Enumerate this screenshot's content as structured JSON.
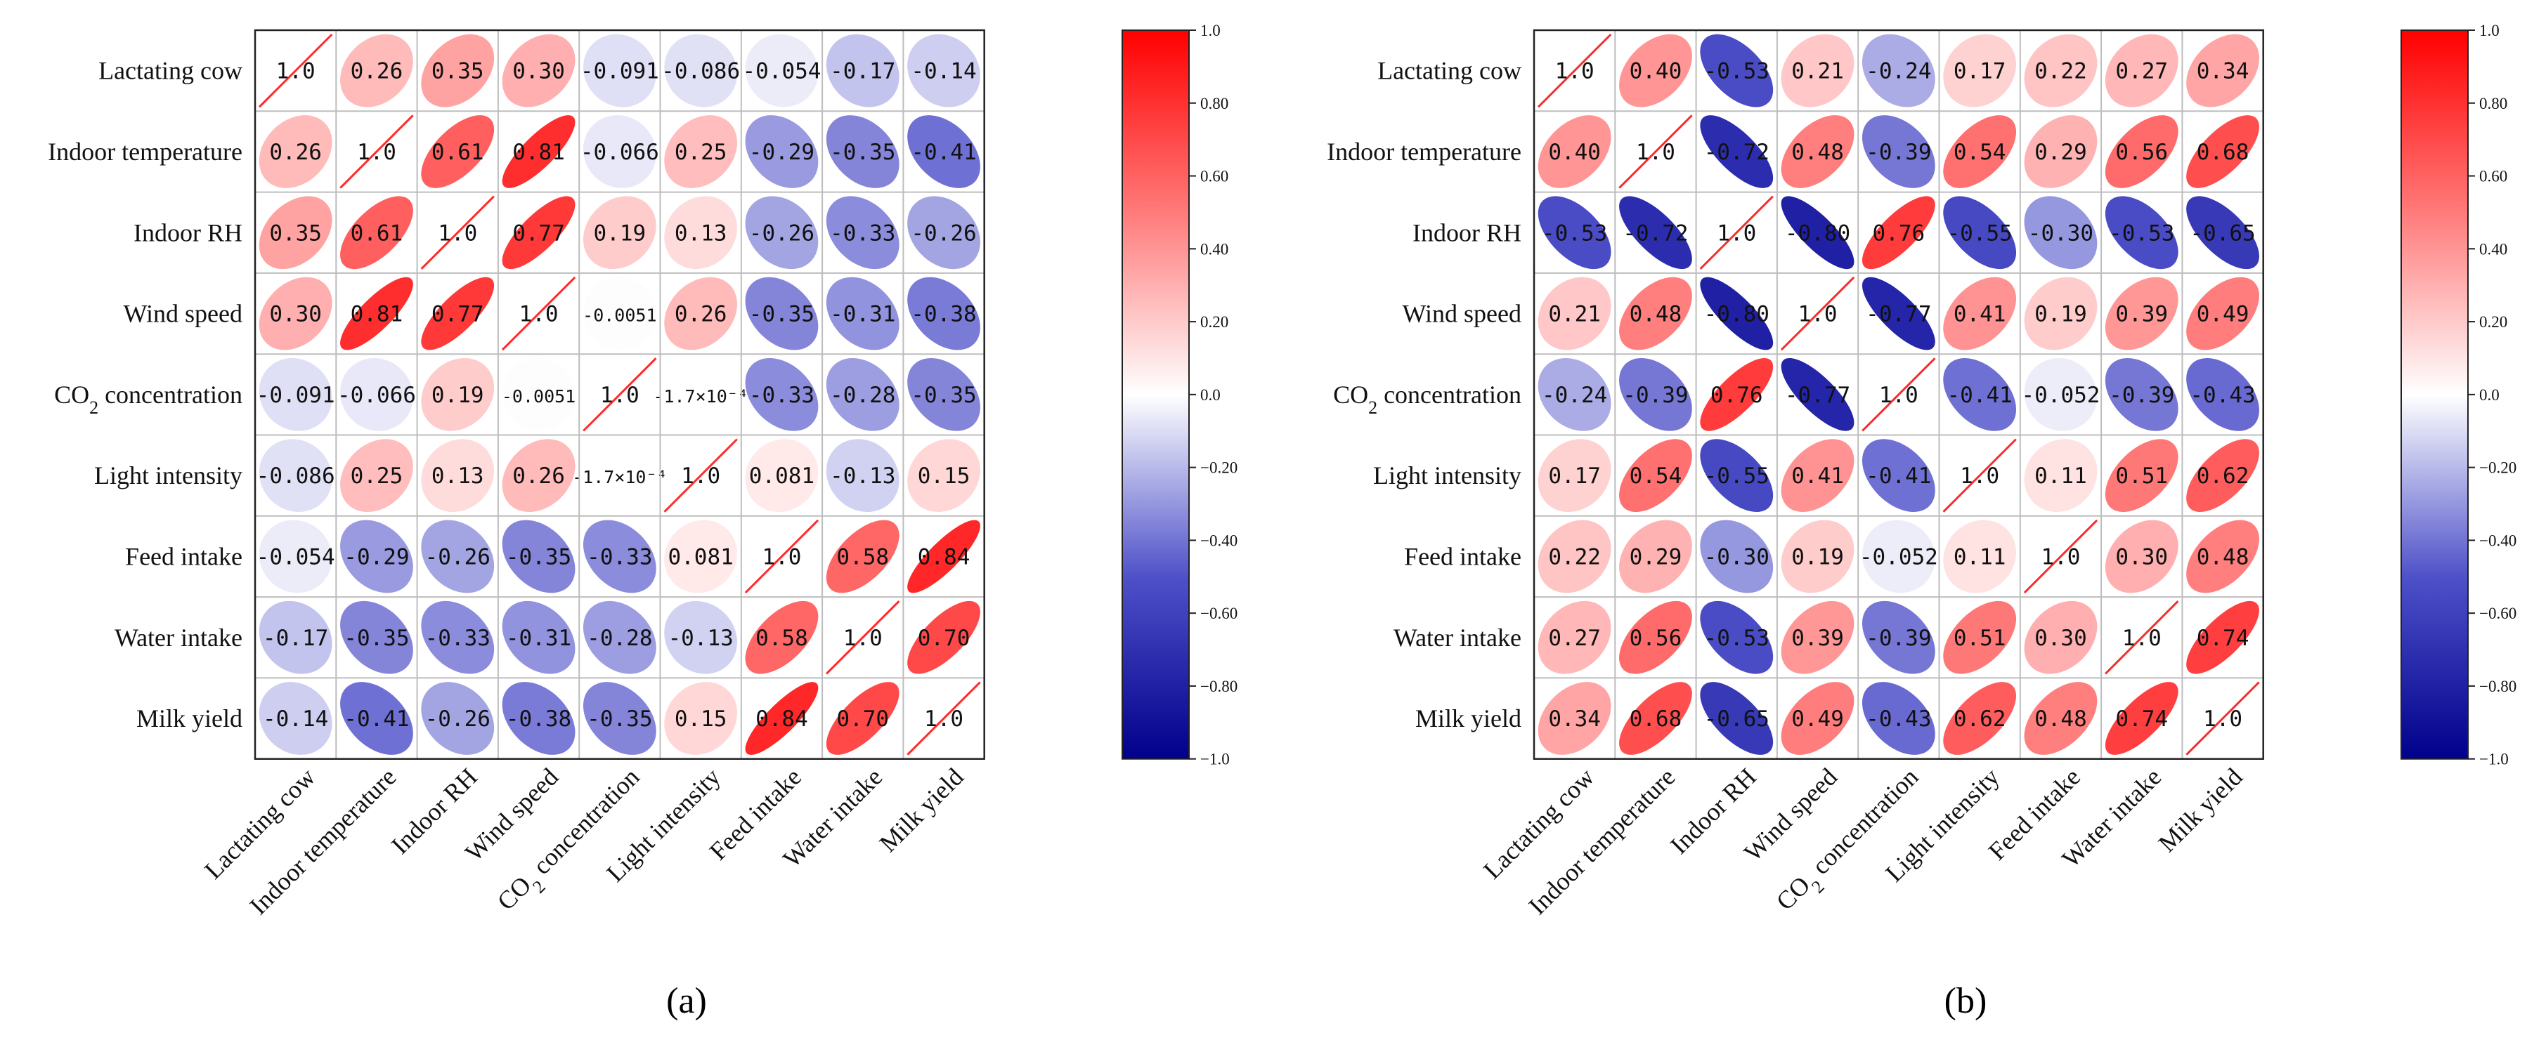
{
  "labels": [
    "Lactating cow",
    "Indoor temperature",
    "Indoor RH",
    "Wind speed",
    "CO₂ concentration",
    "Light intensity",
    "Feed intake",
    "Water intake",
    "Milk yield"
  ],
  "chart_data": [
    {
      "type": "heatmap",
      "caption": "(a)",
      "matrix": [
        [
          1.0,
          0.26,
          0.35,
          0.3,
          -0.091,
          -0.086,
          -0.054,
          -0.17,
          -0.14
        ],
        [
          0.26,
          1.0,
          0.61,
          0.81,
          -0.066,
          0.25,
          -0.29,
          -0.35,
          -0.41
        ],
        [
          0.35,
          0.61,
          1.0,
          0.77,
          0.19,
          0.13,
          -0.26,
          -0.33,
          -0.26
        ],
        [
          0.3,
          0.81,
          0.77,
          1.0,
          -0.0051,
          0.26,
          -0.35,
          -0.31,
          -0.38
        ],
        [
          -0.091,
          -0.066,
          0.19,
          -0.0051,
          1.0,
          -0.00017,
          -0.33,
          -0.28,
          -0.35
        ],
        [
          -0.086,
          0.25,
          0.13,
          0.26,
          -0.00017,
          1.0,
          0.081,
          -0.13,
          0.15
        ],
        [
          -0.054,
          -0.29,
          -0.26,
          -0.35,
          -0.33,
          0.081,
          1.0,
          0.58,
          0.84
        ],
        [
          -0.17,
          -0.35,
          -0.33,
          -0.31,
          -0.28,
          -0.13,
          0.58,
          1.0,
          0.7
        ],
        [
          -0.14,
          -0.41,
          -0.26,
          -0.38,
          -0.35,
          0.15,
          0.84,
          0.7,
          1.0
        ]
      ],
      "cell_text": [
        [
          "1.0",
          "0.26",
          "0.35",
          "0.30",
          "-0.091",
          "-0.086",
          "-0.054",
          "-0.17",
          "-0.14"
        ],
        [
          "0.26",
          "1.0",
          "0.61",
          "0.81",
          "-0.066",
          "0.25",
          "-0.29",
          "-0.35",
          "-0.41"
        ],
        [
          "0.35",
          "0.61",
          "1.0",
          "0.77",
          "0.19",
          "0.13",
          "-0.26",
          "-0.33",
          "-0.26"
        ],
        [
          "0.30",
          "0.81",
          "0.77",
          "1.0",
          "-0.0051",
          "0.26",
          "-0.35",
          "-0.31",
          "-0.38"
        ],
        [
          "-0.091",
          "-0.066",
          "0.19",
          "-0.0051",
          "1.0",
          "-1.7×10⁻⁴",
          "-0.33",
          "-0.28",
          "-0.35"
        ],
        [
          "-0.086",
          "0.25",
          "0.13",
          "0.26",
          "-1.7×10⁻⁴",
          "1.0",
          "0.081",
          "-0.13",
          "0.15"
        ],
        [
          "-0.054",
          "-0.29",
          "-0.26",
          "-0.35",
          "-0.33",
          "0.081",
          "1.0",
          "0.58",
          "0.84"
        ],
        [
          "-0.17",
          "-0.35",
          "-0.33",
          "-0.31",
          "-0.28",
          "-0.13",
          "0.58",
          "1.0",
          "0.70"
        ],
        [
          "-0.14",
          "-0.41",
          "-0.26",
          "-0.38",
          "-0.35",
          "0.15",
          "0.84",
          "0.70",
          "1.0"
        ]
      ]
    },
    {
      "type": "heatmap",
      "caption": "(b)",
      "matrix": [
        [
          1.0,
          0.4,
          -0.53,
          0.21,
          -0.24,
          0.17,
          0.22,
          0.27,
          0.34
        ],
        [
          0.4,
          1.0,
          -0.72,
          0.48,
          -0.39,
          0.54,
          0.29,
          0.56,
          0.68
        ],
        [
          -0.53,
          -0.72,
          1.0,
          -0.8,
          0.76,
          -0.55,
          -0.3,
          -0.53,
          -0.65
        ],
        [
          0.21,
          0.48,
          -0.8,
          1.0,
          -0.77,
          0.41,
          0.19,
          0.39,
          0.49
        ],
        [
          -0.24,
          -0.39,
          0.76,
          -0.77,
          1.0,
          -0.41,
          -0.052,
          -0.39,
          -0.43
        ],
        [
          0.17,
          0.54,
          -0.55,
          0.41,
          -0.41,
          1.0,
          0.11,
          0.51,
          0.62
        ],
        [
          0.22,
          0.29,
          -0.3,
          0.19,
          -0.052,
          0.11,
          1.0,
          0.3,
          0.48
        ],
        [
          0.27,
          0.56,
          -0.53,
          0.39,
          -0.39,
          0.51,
          0.3,
          1.0,
          0.74
        ],
        [
          0.34,
          0.68,
          -0.65,
          0.49,
          -0.43,
          0.62,
          0.48,
          0.74,
          1.0
        ]
      ],
      "cell_text": [
        [
          "1.0",
          "0.40",
          "-0.53",
          "0.21",
          "-0.24",
          "0.17",
          "0.22",
          "0.27",
          "0.34"
        ],
        [
          "0.40",
          "1.0",
          "-0.72",
          "0.48",
          "-0.39",
          "0.54",
          "0.29",
          "0.56",
          "0.68"
        ],
        [
          "-0.53",
          "-0.72",
          "1.0",
          "-0.80",
          "0.76",
          "-0.55",
          "-0.30",
          "-0.53",
          "-0.65"
        ],
        [
          "0.21",
          "0.48",
          "-0.80",
          "1.0",
          "-0.77",
          "0.41",
          "0.19",
          "0.39",
          "0.49"
        ],
        [
          "-0.24",
          "-0.39",
          "0.76",
          "-0.77",
          "1.0",
          "-0.41",
          "-0.052",
          "-0.39",
          "-0.43"
        ],
        [
          "0.17",
          "0.54",
          "-0.55",
          "0.41",
          "-0.41",
          "1.0",
          "0.11",
          "0.51",
          "0.62"
        ],
        [
          "0.22",
          "0.29",
          "-0.30",
          "0.19",
          "-0.052",
          "0.11",
          "1.0",
          "0.30",
          "0.48"
        ],
        [
          "0.27",
          "0.56",
          "-0.53",
          "0.39",
          "-0.39",
          "0.51",
          "0.30",
          "1.0",
          "0.74"
        ],
        [
          "0.34",
          "0.68",
          "-0.65",
          "0.49",
          "-0.43",
          "0.62",
          "0.48",
          "0.74",
          "1.0"
        ]
      ]
    }
  ],
  "colorbar": {
    "range": [
      -1.0,
      1.0
    ],
    "ticks": [
      "1.0",
      "0.80",
      "0.60",
      "0.40",
      "0.20",
      "0.0",
      "−0.20",
      "−0.40",
      "−0.60",
      "−0.80",
      "−1.0"
    ],
    "colors": {
      "negative": "#00008b",
      "neutral": "#ffffff",
      "positive": "#ff0000"
    }
  }
}
